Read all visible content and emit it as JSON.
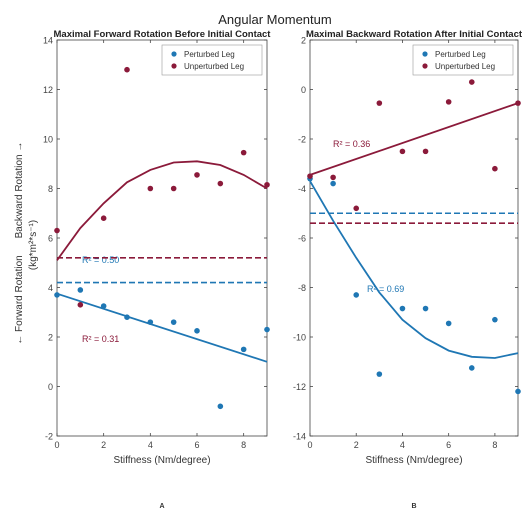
{
  "figure": {
    "title": "Angular Momentum",
    "ylabel_main": "(kg*m²*s⁻¹)",
    "ylabel_backward": "Backward Rotation →",
    "ylabel_forward": "← Forward Rotation"
  },
  "colors": {
    "perturbed": "#1f77b4",
    "unperturbed": "#8b1a3a",
    "axis": "#444444"
  },
  "chart_data": [
    {
      "type": "scatter",
      "panel_label": "A",
      "title": "Maximal Forward Rotation Before Initial Contact",
      "xlabel": "Stiffness (Nm/degree)",
      "ylabel": "",
      "xlim": [
        0,
        9
      ],
      "ylim": [
        -2,
        14
      ],
      "xticks": [
        0,
        2,
        4,
        6,
        8
      ],
      "yticks": [
        -2,
        0,
        2,
        4,
        6,
        8,
        10,
        12,
        14
      ],
      "grid": false,
      "legend_position": "top-right",
      "series": [
        {
          "name": "Perturbed Leg",
          "color_key": "perturbed",
          "x": [
            0,
            1,
            2,
            3,
            4,
            5,
            6,
            7,
            8,
            9
          ],
          "y": [
            3.7,
            3.9,
            3.25,
            2.8,
            2.6,
            2.6,
            2.25,
            -0.8,
            1.5,
            2.3
          ],
          "fit": {
            "kind": "linear",
            "x": [
              0,
              9
            ],
            "y": [
              3.75,
              1.0
            ]
          },
          "mean": 4.2,
          "r2_label": "R² = 0.50"
        },
        {
          "name": "Unperturbed Leg",
          "color_key": "unperturbed",
          "x": [
            0,
            1,
            2,
            3,
            4,
            5,
            6,
            7,
            8,
            9
          ],
          "y": [
            6.3,
            3.3,
            6.8,
            12.8,
            8.0,
            8.0,
            8.55,
            8.2,
            9.45,
            8.15
          ],
          "fit": {
            "kind": "curve",
            "x": [
              0,
              1,
              2,
              3,
              4,
              5,
              6,
              7,
              8,
              9
            ],
            "y": [
              5.1,
              6.4,
              7.4,
              8.25,
              8.75,
              9.05,
              9.1,
              8.95,
              8.55,
              8.0
            ]
          },
          "mean": 5.2,
          "r2_label": "R² = 0.31"
        }
      ]
    },
    {
      "type": "scatter",
      "panel_label": "B",
      "title": "Maximal Backward Rotation After Initial Contact",
      "xlabel": "Stiffness (Nm/degree)",
      "ylabel": "",
      "xlim": [
        0,
        9
      ],
      "ylim": [
        -14,
        2
      ],
      "xticks": [
        0,
        2,
        4,
        6,
        8
      ],
      "yticks": [
        -14,
        -12,
        -10,
        -8,
        -6,
        -4,
        -2,
        0,
        2
      ],
      "grid": false,
      "legend_position": "top-right",
      "series": [
        {
          "name": "Perturbed Leg",
          "color_key": "perturbed",
          "x": [
            0,
            1,
            2,
            3,
            4,
            5,
            6,
            7,
            8,
            9
          ],
          "y": [
            -3.6,
            -3.8,
            -8.3,
            -11.5,
            -8.85,
            -8.85,
            -9.45,
            -11.25,
            -9.3,
            -12.2
          ],
          "fit": {
            "kind": "curve",
            "x": [
              0,
              1,
              2,
              3,
              4,
              5,
              6,
              7,
              8,
              9
            ],
            "y": [
              -3.7,
              -5.3,
              -6.8,
              -8.2,
              -9.3,
              -10.05,
              -10.55,
              -10.8,
              -10.85,
              -10.65
            ]
          },
          "mean": -5.0,
          "r2_label": "R² = 0.69"
        },
        {
          "name": "Unperturbed Leg",
          "color_key": "unperturbed",
          "x": [
            0,
            1,
            2,
            3,
            4,
            5,
            6,
            7,
            8,
            9
          ],
          "y": [
            -3.5,
            -3.55,
            -4.8,
            -0.55,
            -2.5,
            -2.5,
            -0.5,
            0.3,
            -3.2,
            -0.55
          ],
          "fit": {
            "kind": "linear",
            "x": [
              0,
              9
            ],
            "y": [
              -3.45,
              -0.55
            ]
          },
          "mean": -5.4,
          "r2_label": "R² = 0.36"
        }
      ]
    }
  ]
}
